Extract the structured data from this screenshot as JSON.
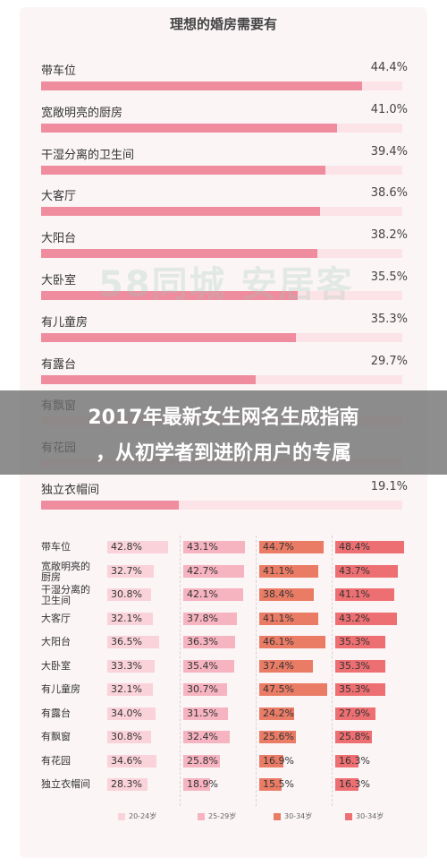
{
  "overlay": {
    "line1": "2017年最新女生网名生成指南",
    "line2": "，从初学者到进阶用户的专属"
  },
  "watermark_text": "58同城 安居客",
  "chart_data": [
    {
      "type": "bar",
      "title": "理想的婚房需要有",
      "categories": [
        "带车位",
        "宽敞明亮的厨房",
        "干湿分离的卫生间",
        "大客厅",
        "大阳台",
        "大卧室",
        "有儿童房",
        "有露台",
        "有飘窗",
        "有花园",
        "独立衣帽间"
      ],
      "values": [
        44.4,
        41.0,
        39.4,
        38.6,
        38.2,
        35.5,
        35.3,
        29.7,
        null,
        null,
        19.1
      ],
      "value_labels": [
        "44.4%",
        "41.0%",
        "39.4%",
        "38.6%",
        "38.2%",
        "35.5%",
        "35.3%",
        "29.7%",
        "",
        "",
        "19.1%"
      ],
      "xlim": [
        0,
        50
      ],
      "fill_color": "#ef8d9f",
      "track_color": "#fce3e8"
    },
    {
      "type": "table",
      "rows": [
        "带车位",
        "宽敞明亮的厨房",
        "干湿分离的卫生间",
        "大客厅",
        "大阳台",
        "大卧室",
        "有儿童房",
        "有露台",
        "有飘窗",
        "有花园",
        "独立衣帽间"
      ],
      "row_labels": [
        [
          "带车位"
        ],
        [
          "宽敞明亮的",
          "厨房"
        ],
        [
          "干湿分离的",
          "卫生间"
        ],
        [
          "大客厅"
        ],
        [
          "大阳台"
        ],
        [
          "大卧室"
        ],
        [
          "有儿童房"
        ],
        [
          "有露台"
        ],
        [
          "有飘窗"
        ],
        [
          "有花园"
        ],
        [
          "独立衣帽间"
        ]
      ],
      "scale_max": 50,
      "series": [
        {
          "name": "20-24岁",
          "color": "#fad2da",
          "values": [
            42.8,
            32.7,
            30.8,
            32.1,
            36.5,
            33.3,
            32.1,
            34.0,
            30.8,
            34.6,
            28.3
          ],
          "labels": [
            "42.8%",
            "32.7%",
            "30.8%",
            "32.1%",
            "36.5%",
            "33.3%",
            "32.1%",
            "34.0%",
            "30.8%",
            "34.6%",
            "28.3%"
          ]
        },
        {
          "name": "25-29岁",
          "color": "#f6b3c0",
          "values": [
            43.1,
            42.7,
            42.1,
            37.8,
            36.3,
            35.4,
            30.7,
            31.5,
            32.4,
            25.8,
            18.9
          ],
          "labels": [
            "43.1%",
            "42.7%",
            "42.1%",
            "37.8%",
            "36.3%",
            "35.4%",
            "30.7%",
            "31.5%",
            "32.4%",
            "25.8%",
            "18.9%"
          ]
        },
        {
          "name": "30-34岁",
          "color": "#ea7c66",
          "values": [
            44.7,
            41.1,
            38.4,
            41.1,
            46.1,
            37.4,
            47.5,
            24.2,
            25.6,
            16.9,
            15.5
          ],
          "labels": [
            "44.7%",
            "41.1%",
            "38.4%",
            "41.1%",
            "46.1%",
            "37.4%",
            "47.5%",
            "24.2%",
            "25.6%",
            "16.9%",
            "15.5%"
          ]
        },
        {
          "name": "30-34岁",
          "color": "#ee6f72",
          "values": [
            48.4,
            43.7,
            41.1,
            43.2,
            35.3,
            35.3,
            35.3,
            27.9,
            25.8,
            16.3,
            16.3
          ],
          "labels": [
            "48.4%",
            "43.7%",
            "41.1%",
            "43.2%",
            "35.3%",
            "35.3%",
            "35.3%",
            "27.9%",
            "25.8%",
            "16.3%",
            "16.3%"
          ]
        }
      ]
    }
  ]
}
